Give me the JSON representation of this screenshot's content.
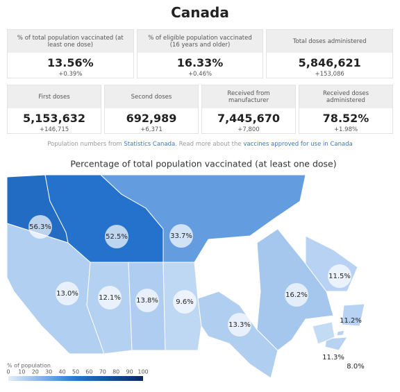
{
  "header": {
    "title": "Canada"
  },
  "stats_row1": [
    {
      "label": "% of total population vaccinated (at least one dose)",
      "value": "13.56%",
      "change": "+0.39%"
    },
    {
      "label": "% of eligible population vaccinated (16 years and older)",
      "value": "16.33%",
      "change": "+0.46%"
    },
    {
      "label": "Total doses administered",
      "value": "5,846,621",
      "change": "+153,086"
    }
  ],
  "stats_row2": [
    {
      "label": "First doses",
      "value": "5,153,632",
      "change": "+146,715"
    },
    {
      "label": "Second doses",
      "value": "692,989",
      "change": "+6,371"
    },
    {
      "label": "Received from manufacturer",
      "value": "7,445,670",
      "change": "+7,800"
    },
    {
      "label": "Received doses administered",
      "value": "78.52%",
      "change": "+1.98%"
    }
  ],
  "source": {
    "text1": "Population numbers from",
    "link1": "Statistics Canada",
    "text2": ". Read more about the",
    "link2": "vaccines approved for use in Canada"
  },
  "map": {
    "title": "Percentage of total population vaccinated (at least one dose)",
    "regions": [
      {
        "value": 56.3,
        "label": "56.3%"
      },
      {
        "value": 52.5,
        "label": "52.5%"
      },
      {
        "value": 33.7,
        "label": "33.7%"
      },
      {
        "value": 13.0,
        "label": "13.0%"
      },
      {
        "value": 12.1,
        "label": "12.1%"
      },
      {
        "value": 13.8,
        "label": "13.8%"
      },
      {
        "value": 9.6,
        "label": "9.6%"
      },
      {
        "value": 13.3,
        "label": "13.3%"
      },
      {
        "value": 16.2,
        "label": "16.2%"
      },
      {
        "value": 11.5,
        "label": "11.5%"
      },
      {
        "value": 11.2,
        "label": "11.2%"
      },
      {
        "value": 11.3,
        "label": "11.3%"
      },
      {
        "value": 8.0,
        "label": "8.0%"
      }
    ],
    "legend": {
      "title": "% of population",
      "range": [
        0,
        100
      ],
      "ticks": [
        0,
        10,
        20,
        30,
        40,
        50,
        60,
        70,
        80,
        90,
        100
      ]
    }
  }
}
